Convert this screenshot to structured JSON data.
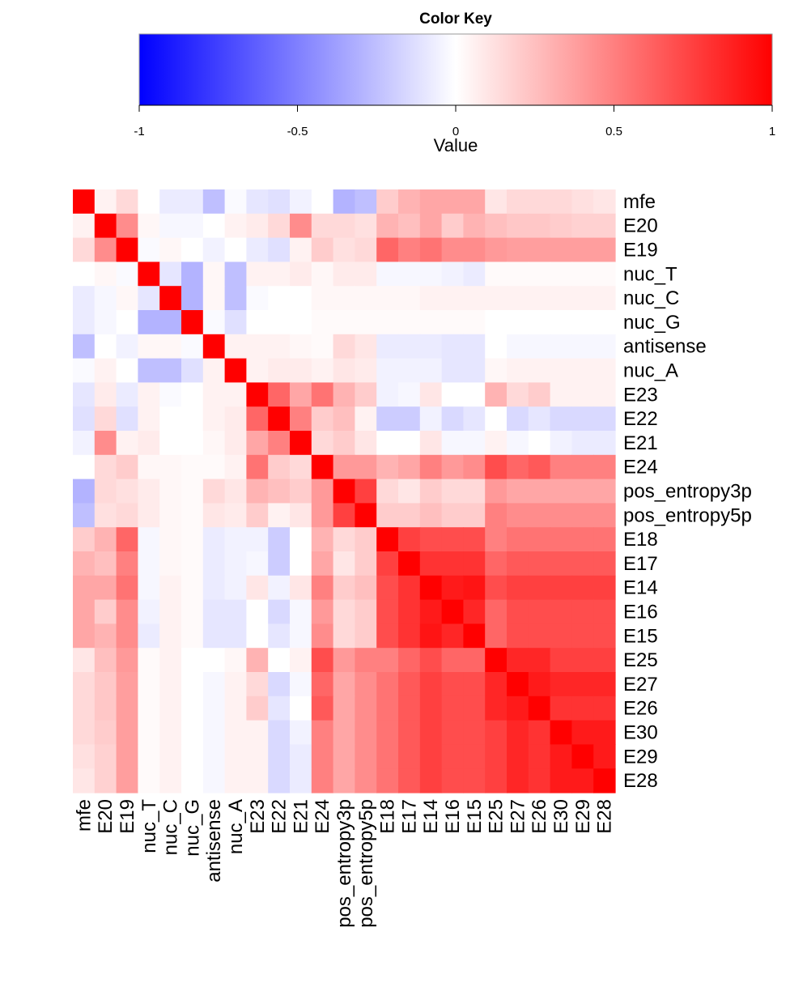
{
  "chart_data": {
    "type": "heatmap",
    "color_key": {
      "title": "Color Key",
      "xlabel": "Value",
      "ticks": [
        "-1",
        "-0.5",
        "0",
        "0.5",
        "1"
      ],
      "range": [
        -1,
        1
      ],
      "colors": {
        "low": "#0000ff",
        "mid": "#ffffff",
        "high": "#ff0000"
      }
    },
    "rows": [
      "mfe",
      "E20",
      "E19",
      "nuc_T",
      "nuc_C",
      "nuc_G",
      "antisense",
      "nuc_A",
      "E23",
      "E22",
      "E21",
      "E24",
      "pos_entropy3p",
      "pos_entropy5p",
      "E18",
      "E17",
      "E14",
      "E16",
      "E15",
      "E25",
      "E27",
      "E26",
      "E30",
      "E29",
      "E28"
    ],
    "columns": [
      "mfe",
      "E20",
      "E19",
      "nuc_T",
      "nuc_C",
      "nuc_G",
      "antisense",
      "nuc_A",
      "E23",
      "E22",
      "E21",
      "E24",
      "pos_entropy3p",
      "pos_entropy5p",
      "E18",
      "E17",
      "E14",
      "E16",
      "E15",
      "E25",
      "E27",
      "E26",
      "E30",
      "E29",
      "E28"
    ],
    "values": [
      [
        1.0,
        0.05,
        0.15,
        0.0,
        -0.08,
        -0.08,
        -0.25,
        -0.02,
        -0.1,
        -0.12,
        -0.05,
        0.0,
        -0.3,
        -0.25,
        0.2,
        0.3,
        0.35,
        0.35,
        0.35,
        0.1,
        0.15,
        0.15,
        0.15,
        0.12,
        0.1
      ],
      [
        0.05,
        1.0,
        0.45,
        0.03,
        -0.03,
        -0.03,
        0.0,
        0.05,
        0.08,
        0.15,
        0.45,
        0.15,
        0.15,
        0.12,
        0.3,
        0.25,
        0.35,
        0.2,
        0.3,
        0.25,
        0.22,
        0.22,
        0.2,
        0.18,
        0.18
      ],
      [
        0.15,
        0.45,
        1.0,
        -0.02,
        0.03,
        0.0,
        -0.05,
        0.0,
        -0.08,
        -0.12,
        0.05,
        0.2,
        0.12,
        0.15,
        0.6,
        0.5,
        0.55,
        0.45,
        0.45,
        0.4,
        0.38,
        0.38,
        0.38,
        0.38,
        0.38
      ],
      [
        0.0,
        0.03,
        -0.02,
        1.0,
        -0.1,
        -0.3,
        0.03,
        -0.25,
        0.05,
        0.05,
        0.08,
        0.03,
        0.08,
        0.08,
        -0.03,
        -0.03,
        -0.03,
        -0.05,
        -0.08,
        0.02,
        0.02,
        0.02,
        0.02,
        0.02,
        0.02
      ],
      [
        -0.08,
        -0.03,
        0.03,
        -0.1,
        1.0,
        -0.3,
        0.03,
        -0.25,
        -0.02,
        0.0,
        0.0,
        0.03,
        0.03,
        0.03,
        0.03,
        0.03,
        0.05,
        0.05,
        0.05,
        0.05,
        0.05,
        0.05,
        0.05,
        0.05,
        0.05
      ],
      [
        -0.08,
        -0.03,
        0.0,
        -0.3,
        -0.3,
        1.0,
        -0.02,
        -0.12,
        0.0,
        0.0,
        0.0,
        0.02,
        0.02,
        0.02,
        0.02,
        0.02,
        0.02,
        0.02,
        0.02,
        0.0,
        0.0,
        0.0,
        0.0,
        0.0,
        0.0
      ],
      [
        -0.25,
        0.0,
        -0.05,
        0.03,
        0.03,
        -0.02,
        1.0,
        0.05,
        0.05,
        0.05,
        0.03,
        0.02,
        0.15,
        0.1,
        -0.08,
        -0.08,
        -0.08,
        -0.1,
        -0.1,
        0.0,
        -0.03,
        -0.03,
        -0.03,
        -0.03,
        -0.03
      ],
      [
        -0.02,
        0.05,
        0.0,
        -0.25,
        -0.25,
        -0.12,
        0.05,
        1.0,
        0.05,
        0.08,
        0.08,
        0.05,
        0.1,
        0.08,
        -0.05,
        -0.05,
        -0.05,
        -0.1,
        -0.1,
        0.03,
        0.05,
        0.05,
        0.05,
        0.05,
        0.05
      ],
      [
        -0.1,
        0.08,
        -0.08,
        0.05,
        -0.02,
        0.0,
        0.05,
        0.05,
        1.0,
        0.6,
        0.35,
        0.55,
        0.3,
        0.2,
        -0.05,
        -0.03,
        0.1,
        0.0,
        0.0,
        0.3,
        0.15,
        0.2,
        0.05,
        0.05,
        0.05
      ],
      [
        -0.12,
        0.15,
        -0.12,
        0.05,
        0.0,
        0.0,
        0.05,
        0.08,
        0.6,
        1.0,
        0.5,
        0.2,
        0.25,
        0.05,
        -0.2,
        -0.2,
        -0.05,
        -0.15,
        -0.1,
        0.0,
        -0.15,
        -0.1,
        -0.15,
        -0.15,
        -0.15
      ],
      [
        -0.05,
        0.45,
        0.05,
        0.08,
        0.0,
        0.0,
        0.03,
        0.08,
        0.35,
        0.5,
        1.0,
        0.15,
        0.2,
        0.1,
        0.0,
        0.0,
        0.1,
        -0.03,
        -0.03,
        0.05,
        -0.03,
        0.0,
        -0.05,
        -0.08,
        -0.08
      ],
      [
        0.0,
        0.15,
        0.2,
        0.03,
        0.03,
        0.02,
        0.02,
        0.05,
        0.55,
        0.2,
        0.15,
        1.0,
        0.4,
        0.4,
        0.3,
        0.35,
        0.5,
        0.4,
        0.45,
        0.7,
        0.6,
        0.65,
        0.5,
        0.5,
        0.5
      ],
      [
        -0.3,
        0.15,
        0.12,
        0.08,
        0.03,
        0.02,
        0.15,
        0.1,
        0.3,
        0.25,
        0.2,
        0.4,
        1.0,
        0.75,
        0.15,
        0.1,
        0.2,
        0.15,
        0.15,
        0.4,
        0.35,
        0.35,
        0.35,
        0.35,
        0.35
      ],
      [
        -0.25,
        0.12,
        0.15,
        0.08,
        0.03,
        0.02,
        0.1,
        0.08,
        0.2,
        0.05,
        0.1,
        0.4,
        0.75,
        1.0,
        0.2,
        0.2,
        0.25,
        0.2,
        0.2,
        0.5,
        0.45,
        0.45,
        0.45,
        0.45,
        0.45
      ],
      [
        0.2,
        0.3,
        0.6,
        -0.03,
        0.03,
        0.02,
        -0.08,
        -0.05,
        -0.05,
        -0.2,
        0.0,
        0.3,
        0.15,
        0.2,
        1.0,
        0.75,
        0.7,
        0.7,
        0.7,
        0.5,
        0.55,
        0.55,
        0.55,
        0.55,
        0.55
      ],
      [
        0.3,
        0.25,
        0.5,
        -0.03,
        0.03,
        0.02,
        -0.08,
        -0.05,
        -0.03,
        -0.2,
        0.0,
        0.35,
        0.1,
        0.2,
        0.75,
        1.0,
        0.8,
        0.8,
        0.8,
        0.6,
        0.65,
        0.65,
        0.65,
        0.65,
        0.65
      ],
      [
        0.35,
        0.35,
        0.55,
        -0.03,
        0.05,
        0.02,
        -0.08,
        -0.05,
        0.1,
        -0.05,
        0.1,
        0.5,
        0.2,
        0.25,
        0.7,
        0.8,
        1.0,
        0.9,
        0.92,
        0.7,
        0.75,
        0.75,
        0.75,
        0.75,
        0.75
      ],
      [
        0.35,
        0.2,
        0.45,
        -0.05,
        0.05,
        0.02,
        -0.1,
        -0.1,
        0.0,
        -0.15,
        -0.03,
        0.4,
        0.15,
        0.2,
        0.7,
        0.8,
        0.9,
        1.0,
        0.85,
        0.6,
        0.7,
        0.7,
        0.7,
        0.7,
        0.7
      ],
      [
        0.35,
        0.3,
        0.45,
        -0.08,
        0.05,
        0.02,
        -0.1,
        -0.1,
        0.0,
        -0.1,
        -0.03,
        0.45,
        0.15,
        0.2,
        0.7,
        0.8,
        0.92,
        0.85,
        1.0,
        0.6,
        0.7,
        0.7,
        0.7,
        0.7,
        0.7
      ],
      [
        0.1,
        0.25,
        0.4,
        0.02,
        0.05,
        0.0,
        0.0,
        0.03,
        0.3,
        0.0,
        0.05,
        0.7,
        0.4,
        0.5,
        0.5,
        0.6,
        0.7,
        0.6,
        0.6,
        1.0,
        0.85,
        0.85,
        0.75,
        0.75,
        0.75
      ],
      [
        0.15,
        0.22,
        0.38,
        0.02,
        0.05,
        0.0,
        -0.03,
        0.05,
        0.15,
        -0.15,
        -0.03,
        0.6,
        0.35,
        0.45,
        0.55,
        0.65,
        0.75,
        0.7,
        0.7,
        0.85,
        1.0,
        0.9,
        0.85,
        0.85,
        0.85
      ],
      [
        0.15,
        0.22,
        0.38,
        0.02,
        0.05,
        0.0,
        -0.03,
        0.05,
        0.2,
        -0.1,
        0.0,
        0.65,
        0.35,
        0.45,
        0.55,
        0.65,
        0.75,
        0.7,
        0.7,
        0.85,
        0.9,
        1.0,
        0.8,
        0.8,
        0.8
      ],
      [
        0.15,
        0.2,
        0.38,
        0.02,
        0.05,
        0.0,
        -0.03,
        0.05,
        0.05,
        -0.15,
        -0.05,
        0.5,
        0.35,
        0.45,
        0.55,
        0.65,
        0.75,
        0.7,
        0.7,
        0.75,
        0.85,
        0.8,
        1.0,
        0.9,
        0.9
      ],
      [
        0.12,
        0.18,
        0.38,
        0.02,
        0.05,
        0.0,
        -0.03,
        0.05,
        0.05,
        -0.15,
        -0.08,
        0.5,
        0.35,
        0.45,
        0.55,
        0.65,
        0.75,
        0.7,
        0.7,
        0.75,
        0.85,
        0.8,
        0.9,
        1.0,
        0.9
      ],
      [
        0.1,
        0.18,
        0.38,
        0.02,
        0.05,
        0.0,
        -0.03,
        0.05,
        0.05,
        -0.15,
        -0.08,
        0.5,
        0.35,
        0.45,
        0.55,
        0.65,
        0.75,
        0.7,
        0.7,
        0.75,
        0.85,
        0.8,
        0.9,
        0.9,
        1.0
      ]
    ]
  }
}
